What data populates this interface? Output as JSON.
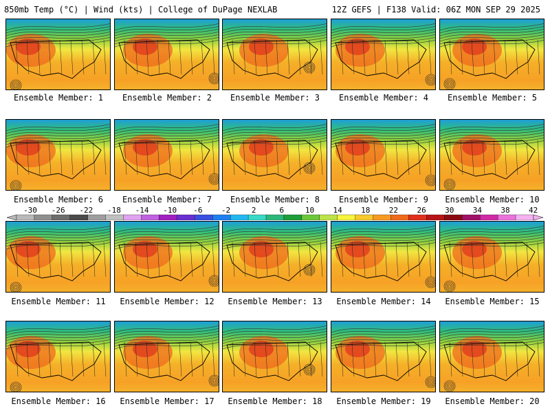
{
  "header": {
    "left": "850mb Temp (°C) | Wind (kts) | College of DuPage NEXLAB",
    "right": "12Z GEFS | F138 Valid: 06Z MON SEP 29 2025"
  },
  "colorbar": {
    "labels": [
      "-30",
      "-26",
      "-22",
      "-18",
      "-14",
      "-10",
      "-6",
      "-2",
      "2",
      "6",
      "10",
      "14",
      "18",
      "22",
      "26",
      "30",
      "34",
      "38",
      "42"
    ],
    "colors": [
      "#b9b9b9",
      "#8f8f8f",
      "#6d6d6d",
      "#4a4a4a",
      "#9e9e9e",
      "#c0c0c0",
      "#e0a3f0",
      "#c061e0",
      "#a020c0",
      "#6a2fd0",
      "#3b4fe0",
      "#1f7ff0",
      "#23b7f0",
      "#39d9c7",
      "#2db87a",
      "#1f9e3a",
      "#6cc83a",
      "#bde24a",
      "#f6f33b",
      "#f7c92e",
      "#f59a22",
      "#ef6a1c",
      "#e0301d",
      "#b81418",
      "#8a0b12",
      "#a0126a",
      "#d02aa6",
      "#ea73da",
      "#f3b2f0"
    ]
  },
  "members": [
    "Ensemble Member: 1",
    "Ensemble Member: 2",
    "Ensemble Member: 3",
    "Ensemble Member: 4",
    "Ensemble Member: 5",
    "Ensemble Member: 6",
    "Ensemble Member: 7",
    "Ensemble Member: 8",
    "Ensemble Member: 9",
    "Ensemble Member: 10",
    "Ensemble Member: 11",
    "Ensemble Member: 12",
    "Ensemble Member: 13",
    "Ensemble Member: 14",
    "Ensemble Member: 15",
    "Ensemble Member: 16",
    "Ensemble Member: 17",
    "Ensemble Member: 18",
    "Ensemble Member: 19",
    "Ensemble Member: 20"
  ]
}
